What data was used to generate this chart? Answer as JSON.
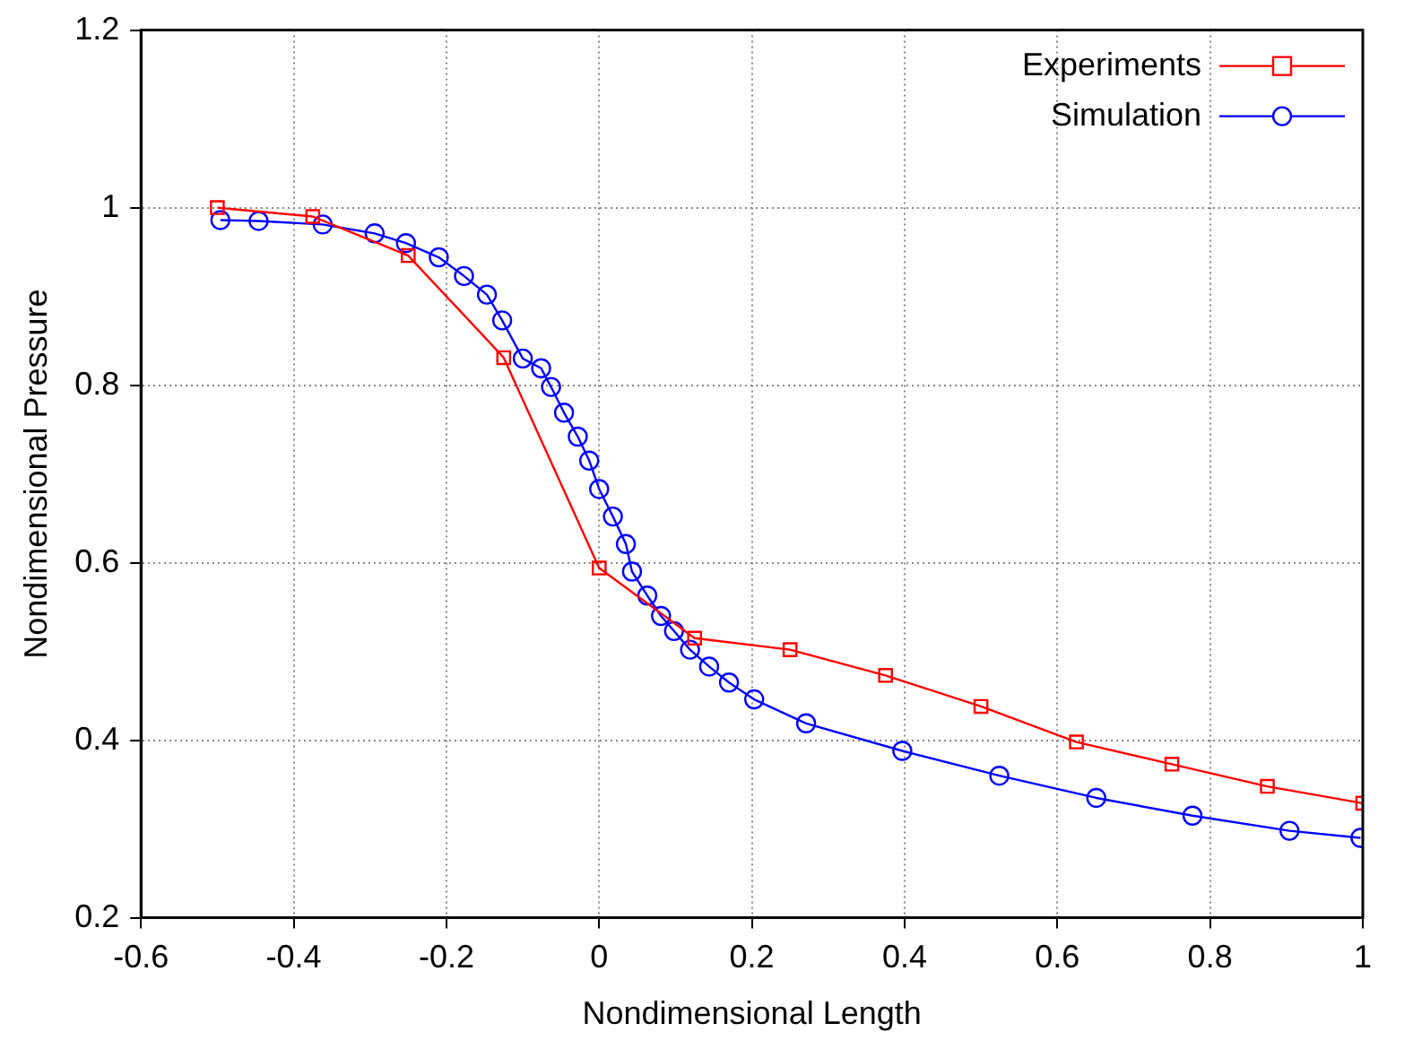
{
  "chart_data": {
    "type": "line",
    "xlabel": "Nondimensional Length",
    "ylabel": "Nondimensional Pressure",
    "xlim": [
      -0.6,
      1
    ],
    "xticks": [
      -0.6,
      -0.4,
      -0.2,
      0,
      0.2,
      0.4,
      0.6,
      0.8,
      1
    ],
    "ylim": [
      0.2,
      1.2
    ],
    "yticks": [
      0.2,
      0.4,
      0.6,
      0.8,
      1,
      1.2
    ],
    "grid": true,
    "legend": "top right",
    "line_style": "solid",
    "series": [
      {
        "name": "Experiments",
        "color": "#ff0000",
        "marker": "square",
        "x": [
          -0.5,
          -0.375,
          -0.25,
          -0.125,
          0,
          0.125,
          0.25,
          0.375,
          0.5,
          0.625,
          0.75,
          0.875,
          1
        ],
        "values": [
          1.0,
          0.99,
          0.946,
          0.831,
          0.594,
          0.515,
          0.502,
          0.473,
          0.438,
          0.398,
          0.373,
          0.348,
          0.329
        ]
      },
      {
        "name": "Simulation",
        "color": "#0000ff",
        "marker": "circle",
        "x": [
          -0.496,
          -0.446,
          -0.362,
          -0.294,
          -0.253,
          -0.21,
          -0.177,
          -0.147,
          -0.127,
          -0.1,
          -0.076,
          -0.063,
          -0.046,
          -0.028,
          -0.013,
          0,
          0.018,
          0.035,
          0.043,
          0.063,
          0.081,
          0.098,
          0.119,
          0.144,
          0.17,
          0.203,
          0.271,
          0.397,
          0.524,
          0.651,
          0.777,
          0.904,
          0.997
        ],
        "values": [
          0.986,
          0.985,
          0.981,
          0.971,
          0.96,
          0.944,
          0.923,
          0.902,
          0.873,
          0.83,
          0.819,
          0.798,
          0.769,
          0.742,
          0.715,
          0.683,
          0.652,
          0.621,
          0.59,
          0.563,
          0.54,
          0.523,
          0.502,
          0.483,
          0.465,
          0.446,
          0.419,
          0.388,
          0.36,
          0.335,
          0.315,
          0.298,
          0.29
        ]
      }
    ]
  }
}
